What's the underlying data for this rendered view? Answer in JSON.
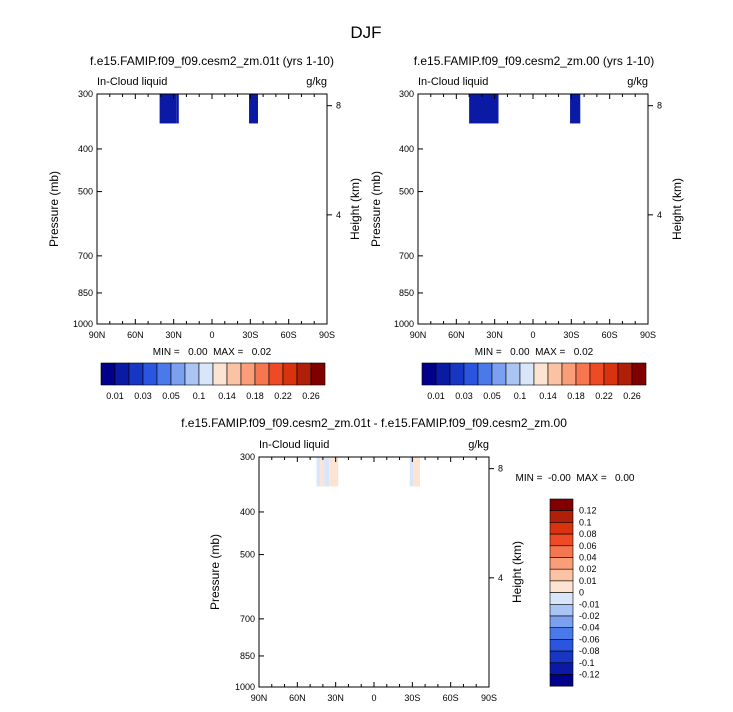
{
  "page": {
    "title": "DJF"
  },
  "colors": {
    "seq": [
      "#00008b",
      "#0a1aa5",
      "#1636c3",
      "#2955e0",
      "#4a7aea",
      "#7aa0ef",
      "#aac4f3",
      "#d9e6f9",
      "#fde4d2",
      "#fbc3a3",
      "#f99e78",
      "#f6764f",
      "#ef4a26",
      "#d8320f",
      "#b02008",
      "#800000"
    ],
    "div": [
      "#00008b",
      "#0a1aa5",
      "#1636c3",
      "#2955e0",
      "#4a7aea",
      "#7aa0ef",
      "#aac4f3",
      "#d9e6f9",
      "#fde4d2",
      "#fbc3a3",
      "#f99e78",
      "#f6764f",
      "#ef4a26",
      "#d8320f",
      "#b02008",
      "#800000"
    ]
  },
  "chart_data": [
    {
      "type": "heatmap",
      "id": "panel1",
      "title": "f.e15.FAMIP.f09_f09.cesm2_zm.01t (yrs 1-10)",
      "left_label": "In-Cloud liquid",
      "right_label": "g/kg",
      "ylabel": "Pressure (mb)",
      "y2label": "Height (km)",
      "x_ticks": [
        "90N",
        "60N",
        "30N",
        "0",
        "30S",
        "60S",
        "90S"
      ],
      "x_range": [
        90,
        -90
      ],
      "y_ticks": [
        "300",
        "400",
        "500",
        "700",
        "850",
        "1000"
      ],
      "y_tick_values": [
        300,
        400,
        500,
        700,
        850,
        1000
      ],
      "y_range": [
        300,
        1000
      ],
      "y2_ticks": [
        "8",
        "4"
      ],
      "stats": "MIN =   0.00  MAX =   0.02",
      "cells": [
        {
          "lat_from": 41,
          "lat_to": 28,
          "p_from": 300,
          "p_to": 350,
          "value": 0.01
        },
        {
          "lat_from": 28,
          "lat_to": 26,
          "p_from": 300,
          "p_to": 350,
          "value": 0.01
        },
        {
          "lat_from": -29,
          "lat_to": -36,
          "p_from": 300,
          "p_to": 350,
          "value": 0.01
        }
      ]
    },
    {
      "type": "heatmap",
      "id": "panel2",
      "title": "f.e15.FAMIP.f09_f09.cesm2_zm.00 (yrs 1-10)",
      "left_label": "In-Cloud liquid",
      "right_label": "g/kg",
      "ylabel": "Pressure (mb)",
      "y2label": "Height (km)",
      "x_ticks": [
        "90N",
        "60N",
        "30N",
        "0",
        "30S",
        "60S",
        "90S"
      ],
      "x_range": [
        90,
        -90
      ],
      "y_ticks": [
        "300",
        "400",
        "500",
        "700",
        "850",
        "1000"
      ],
      "y_tick_values": [
        300,
        400,
        500,
        700,
        850,
        1000
      ],
      "y_range": [
        300,
        1000
      ],
      "y2_ticks": [
        "8",
        "4"
      ],
      "stats": "MIN =   0.00  MAX =   0.02",
      "cells": [
        {
          "lat_from": 50,
          "lat_to": 27,
          "p_from": 300,
          "p_to": 350,
          "value": 0.01
        },
        {
          "lat_from": -29,
          "lat_to": -37,
          "p_from": 300,
          "p_to": 350,
          "value": 0.01
        }
      ]
    },
    {
      "type": "heatmap",
      "id": "panel3",
      "title": "f.e15.FAMIP.f09_f09.cesm2_zm.01t - f.e15.FAMIP.f09_f09.cesm2_zm.00",
      "left_label": "In-Cloud liquid",
      "right_label": "g/kg",
      "ylabel": "Pressure (mb)",
      "y2label": "Height (km)",
      "x_ticks": [
        "90N",
        "60N",
        "30N",
        "0",
        "30S",
        "60S",
        "90S"
      ],
      "x_range": [
        90,
        -90
      ],
      "y_ticks": [
        "300",
        "400",
        "500",
        "700",
        "850",
        "1000"
      ],
      "y_tick_values": [
        300,
        400,
        500,
        700,
        850,
        1000
      ],
      "y_range": [
        300,
        1000
      ],
      "y2_ticks": [
        "8",
        "4"
      ],
      "stats": "MIN =  -0.00  MAX =   0.00",
      "cells": [
        {
          "lat_from": 45,
          "lat_to": 42,
          "p_from": 300,
          "p_to": 350,
          "value": -0.005
        },
        {
          "lat_from": 42,
          "lat_to": 39,
          "p_from": 300,
          "p_to": 350,
          "value": 0.005
        },
        {
          "lat_from": 39,
          "lat_to": 35,
          "p_from": 300,
          "p_to": 350,
          "value": -0.005
        },
        {
          "lat_from": 35,
          "lat_to": 28,
          "p_from": 300,
          "p_to": 350,
          "value": 0.005
        },
        {
          "lat_from": -28,
          "lat_to": -31,
          "p_from": 300,
          "p_to": 350,
          "value": -0.005
        },
        {
          "lat_from": -31,
          "lat_to": -36,
          "p_from": 300,
          "p_to": 350,
          "value": 0.005
        }
      ]
    }
  ],
  "colorbars": {
    "seq_labels": [
      "0.01",
      "0.03",
      "0.05",
      "0.1",
      "0.14",
      "0.18",
      "0.22",
      "0.26"
    ],
    "div_labels": [
      "0.12",
      "0.1",
      "0.08",
      "0.06",
      "0.04",
      "0.02",
      "0.01",
      "0",
      "-0.01",
      "-0.02",
      "-0.04",
      "-0.06",
      "-0.08",
      "-0.1",
      "-0.12"
    ]
  }
}
